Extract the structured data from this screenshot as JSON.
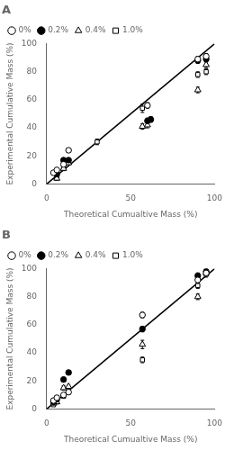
{
  "chart_data": [
    {
      "type": "scatter",
      "title": "A",
      "xlabel": "Theoretical Cumualtive Mass (%)",
      "ylabel": "Experimental Cumulative Mass (%)",
      "xlim": [
        0,
        100
      ],
      "xticks": [
        0,
        50,
        100
      ],
      "ylim": [
        0,
        100
      ],
      "yticks": [
        0,
        20,
        40,
        60,
        80,
        100
      ],
      "grid": false,
      "legend": "upper left",
      "series": [
        {
          "type": "line",
          "line_style": "solid",
          "color": "black",
          "x": [
            0,
            100
          ],
          "values": [
            0,
            100
          ]
        },
        {
          "name": "0%",
          "marker": "open_circle",
          "color": "black",
          "x": [
            4,
            6,
            10,
            13,
            60,
            90,
            95
          ],
          "values": [
            8,
            10,
            14,
            24,
            56,
            89,
            91
          ],
          "yerr": [
            1.5,
            1,
            1,
            1.5,
            2,
            2,
            2
          ]
        },
        {
          "name": "0.2%",
          "marker": "filled_circle",
          "color": "black",
          "x": [
            6,
            10,
            13,
            60,
            62,
            90,
            95
          ],
          "values": [
            7,
            17,
            17,
            45,
            46,
            88,
            89
          ],
          "yerr": [
            1,
            1.5,
            1,
            2,
            2,
            2,
            2
          ]
        },
        {
          "name": "0.4%",
          "marker": "open_triangle",
          "color": "black",
          "x": [
            6,
            10,
            13,
            57,
            60,
            90,
            95
          ],
          "values": [
            4,
            11,
            15,
            41,
            42,
            67,
            85
          ],
          "yerr": [
            1,
            1,
            1,
            2,
            2,
            2,
            2
          ]
        },
        {
          "name": "1.0%",
          "marker": "open_square",
          "color": "black",
          "x": [
            6,
            10,
            30,
            57,
            90,
            95
          ],
          "values": [
            4,
            11,
            30,
            54,
            78,
            80
          ],
          "yerr": [
            1,
            1.5,
            2,
            3,
            2,
            2
          ]
        }
      ]
    },
    {
      "type": "scatter",
      "title": "B",
      "xlabel": "Theoretical Cumualtive Mass (%)",
      "ylabel": "Experimental Cumulative Mass (%)",
      "xlim": [
        0,
        100
      ],
      "xticks": [
        0,
        50,
        100
      ],
      "ylim": [
        0,
        100
      ],
      "yticks": [
        0,
        20,
        40,
        60,
        80,
        100
      ],
      "grid": false,
      "legend": "upper left",
      "series": [
        {
          "type": "line",
          "line_style": "solid",
          "color": "black",
          "x": [
            0,
            100
          ],
          "values": [
            0,
            100
          ]
        },
        {
          "name": "0%",
          "marker": "open_circle",
          "color": "black",
          "x": [
            4,
            6,
            10,
            13,
            57,
            90,
            95
          ],
          "values": [
            6,
            8,
            10,
            12,
            67,
            92,
            97
          ],
          "yerr": [
            1,
            1,
            1,
            1,
            2,
            2,
            2
          ]
        },
        {
          "name": "0.2%",
          "marker": "filled_circle",
          "color": "black",
          "x": [
            4,
            6,
            10,
            13,
            57,
            90,
            95
          ],
          "values": [
            5,
            7,
            21,
            26,
            57,
            95,
            98
          ],
          "yerr": [
            1,
            1,
            1.5,
            1.5,
            2,
            2,
            2
          ]
        },
        {
          "name": "0.4%",
          "marker": "open_triangle",
          "color": "black",
          "x": [
            4,
            6,
            10,
            13,
            57,
            90,
            95
          ],
          "values": [
            4,
            5,
            15,
            16,
            46,
            80,
            97
          ],
          "yerr": [
            1,
            1,
            1.5,
            1,
            3,
            2,
            2
          ]
        },
        {
          "name": "1.0%",
          "marker": "open_square",
          "color": "black",
          "x": [
            4,
            6,
            10,
            13,
            57,
            90,
            95
          ],
          "values": [
            3,
            5,
            9,
            12,
            35,
            88,
            96
          ],
          "yerr": [
            1,
            1,
            1,
            1,
            2,
            2,
            2
          ]
        }
      ]
    }
  ]
}
